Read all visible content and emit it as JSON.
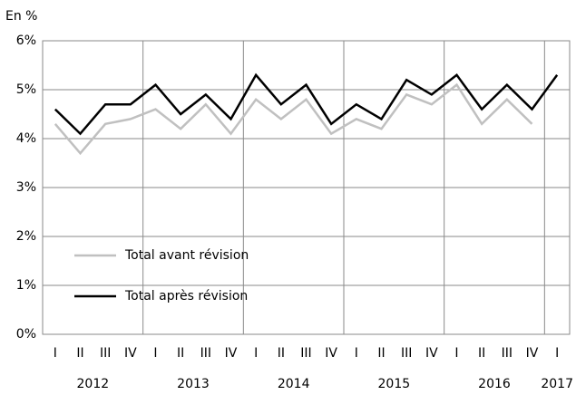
{
  "chart_data": {
    "type": "line",
    "y_axis_label": "En %",
    "categories": [
      "I",
      "II",
      "III",
      "IV",
      "I",
      "II",
      "III",
      "IV",
      "I",
      "II",
      "III",
      "IV",
      "I",
      "II",
      "III",
      "IV",
      "I",
      "II",
      "III",
      "IV",
      "I"
    ],
    "years": [
      "2012",
      "2013",
      "2014",
      "2015",
      "2016",
      "2017"
    ],
    "series": [
      {
        "name": "Total avant révision",
        "color": "#c0c0c0",
        "values": [
          4.3,
          3.7,
          4.3,
          4.4,
          4.6,
          4.2,
          4.7,
          4.1,
          4.8,
          4.4,
          4.8,
          4.1,
          4.4,
          4.2,
          4.9,
          4.7,
          5.1,
          4.3,
          4.8,
          4.3,
          null
        ]
      },
      {
        "name": "Total après révision",
        "color": "#000000",
        "values": [
          4.6,
          4.1,
          4.7,
          4.7,
          5.1,
          4.5,
          4.9,
          4.4,
          5.3,
          4.7,
          5.1,
          4.3,
          4.7,
          4.4,
          5.2,
          4.9,
          5.3,
          4.6,
          5.1,
          4.6,
          5.3
        ]
      }
    ],
    "ylim": [
      0,
      6
    ],
    "yticks": [
      {
        "value": 0,
        "label": "0%"
      },
      {
        "value": 1,
        "label": "1%"
      },
      {
        "value": 2,
        "label": "2%"
      },
      {
        "value": 3,
        "label": "3%"
      },
      {
        "value": 4,
        "label": "4%"
      },
      {
        "value": 5,
        "label": "5%"
      },
      {
        "value": 6,
        "label": "6%"
      }
    ],
    "grid": true,
    "legend": "lower left"
  }
}
